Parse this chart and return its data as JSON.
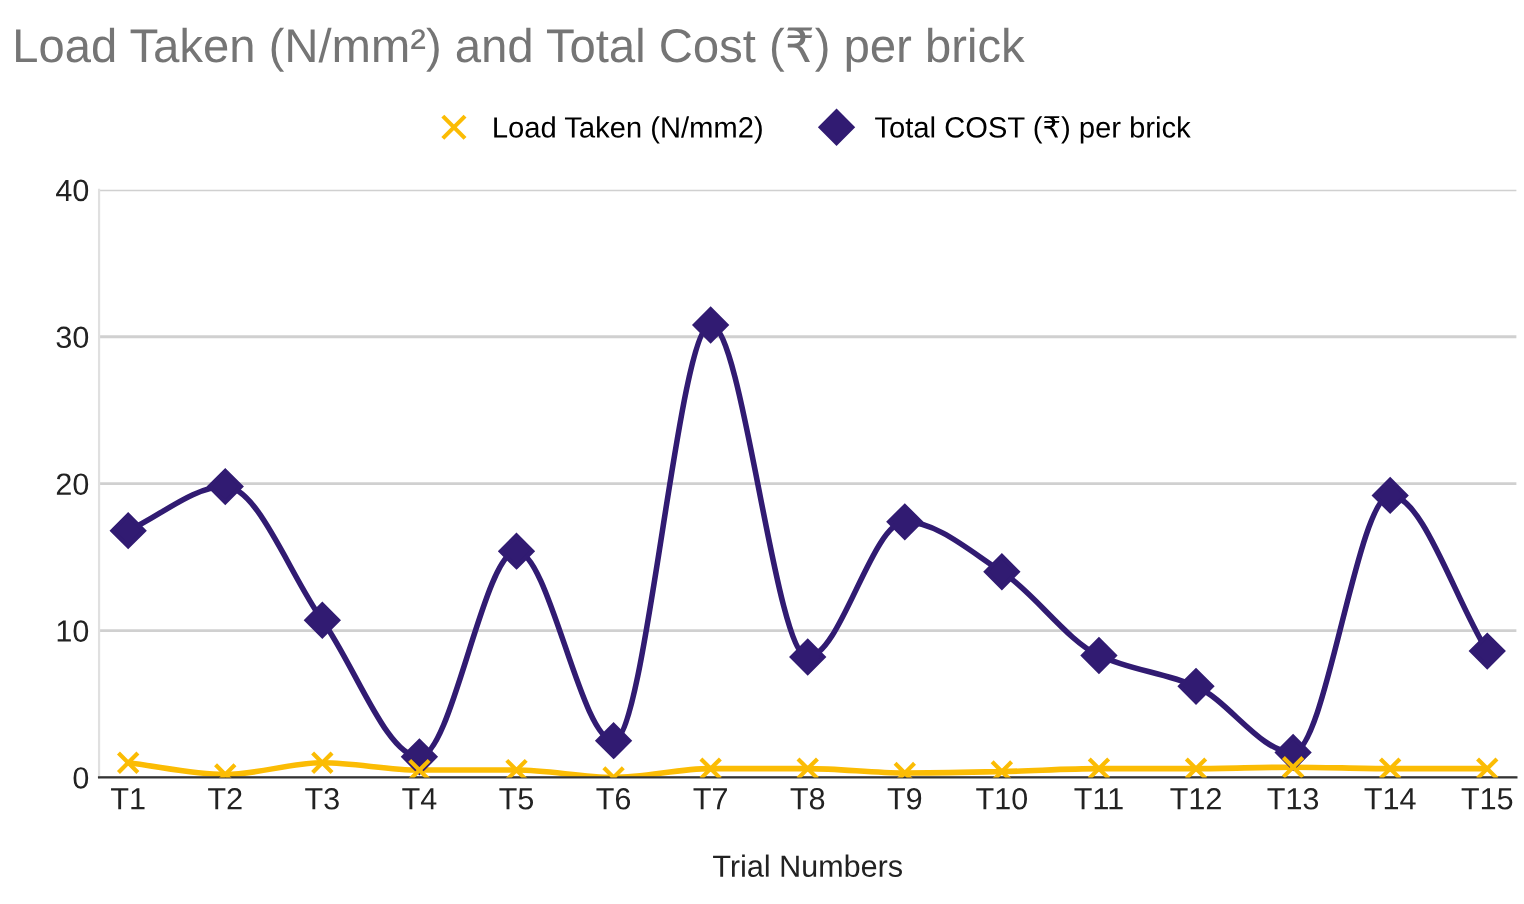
{
  "chart_data": {
    "type": "line",
    "title": "Load Taken (N/mm²) and Total Cost (₹) per brick",
    "xlabel": "Trial Numbers",
    "categories": [
      "T1",
      "T2",
      "T3",
      "T4",
      "T5",
      "T6",
      "T7",
      "T8",
      "T9",
      "T10",
      "T11",
      "T12",
      "T13",
      "T14",
      "T15"
    ],
    "series": [
      {
        "name": "Load Taken (N/mm2)",
        "color": "#fbbc04",
        "marker": "cross",
        "values": [
          1.0,
          0.2,
          1.0,
          0.5,
          0.5,
          0.0,
          0.6,
          0.6,
          0.3,
          0.4,
          0.6,
          0.6,
          0.7,
          0.6,
          0.6
        ]
      },
      {
        "name": "Total COST (₹) per brick",
        "color": "#311b72",
        "marker": "diamond",
        "values": [
          16.8,
          19.8,
          10.7,
          1.4,
          15.4,
          2.5,
          30.8,
          8.2,
          17.4,
          14.0,
          8.3,
          6.2,
          1.7,
          19.2,
          8.6
        ]
      }
    ],
    "ylim": [
      0,
      40
    ],
    "yticks": [
      0,
      10,
      20,
      30,
      40
    ],
    "grid": "y",
    "legend": "top",
    "line_style": "solid"
  }
}
